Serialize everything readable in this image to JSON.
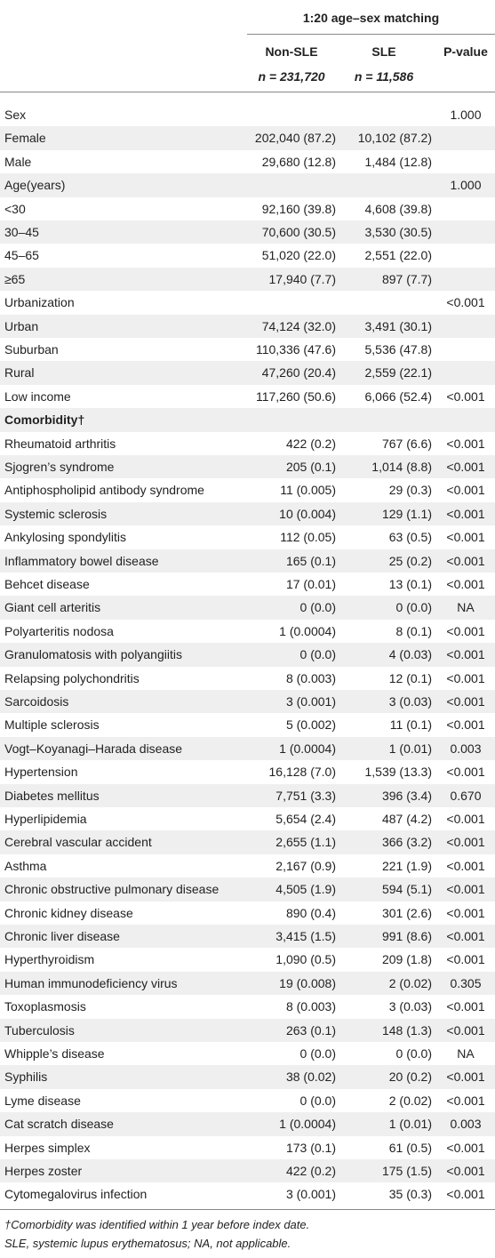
{
  "table": {
    "group_header": "1:20 age–sex matching",
    "columns": [
      {
        "name": "Non-SLE",
        "n": "n = 231,720"
      },
      {
        "name": "SLE",
        "n": "n = 11,586"
      },
      {
        "name": "P-value",
        "n": null
      }
    ],
    "rows": [
      [
        "Sex",
        null,
        null,
        "1.000"
      ],
      [
        "Female",
        "202,040 (87.2)",
        "10,102 (87.2)",
        null
      ],
      [
        "Male",
        "29,680 (12.8)",
        "1,484 (12.8)",
        null
      ],
      [
        "Age(years)",
        null,
        null,
        "1.000"
      ],
      [
        "<30",
        "92,160 (39.8)",
        "4,608 (39.8)",
        null
      ],
      [
        "30–45",
        "70,600 (30.5)",
        "3,530 (30.5)",
        null
      ],
      [
        "45–65",
        "51,020 (22.0)",
        "2,551 (22.0)",
        null
      ],
      [
        "≥65",
        "17,940 (7.7)",
        "897 (7.7)",
        null
      ],
      [
        "Urbanization",
        null,
        null,
        "<0.001"
      ],
      [
        "Urban",
        "74,124 (32.0)",
        "3,491 (30.1)",
        null
      ],
      [
        "Suburban",
        "110,336 (47.6)",
        "5,536 (47.8)",
        null
      ],
      [
        "Rural",
        "47,260 (20.4)",
        "2,559 (22.1)",
        null
      ],
      [
        "Low income",
        "117,260 (50.6)",
        "6,066 (52.4)",
        "<0.001"
      ],
      [
        "Comorbidity†",
        null,
        null,
        null
      ],
      [
        "Rheumatoid arthritis",
        "422 (0.2)",
        "767 (6.6)",
        "<0.001"
      ],
      [
        "Sjogren’s syndrome",
        "205 (0.1)",
        "1,014 (8.8)",
        "<0.001"
      ],
      [
        "Antiphospholipid antibody syndrome",
        "11 (0.005)",
        "29 (0.3)",
        "<0.001"
      ],
      [
        "Systemic sclerosis",
        "10 (0.004)",
        "129 (1.1)",
        "<0.001"
      ],
      [
        "Ankylosing spondylitis",
        "112 (0.05)",
        "63 (0.5)",
        "<0.001"
      ],
      [
        "Inflammatory bowel disease",
        "165 (0.1)",
        "25 (0.2)",
        "<0.001"
      ],
      [
        "Behcet disease",
        "17 (0.01)",
        "13 (0.1)",
        "<0.001"
      ],
      [
        "Giant cell arteritis",
        "0 (0.0)",
        "0 (0.0)",
        "NA"
      ],
      [
        "Polyarteritis nodosa",
        "1 (0.0004)",
        "8 (0.1)",
        "<0.001"
      ],
      [
        "Granulomatosis with polyangiitis",
        "0 (0.0)",
        "4 (0.03)",
        "<0.001"
      ],
      [
        "Relapsing polychondritis",
        "8 (0.003)",
        "12 (0.1)",
        "<0.001"
      ],
      [
        "Sarcoidosis",
        "3 (0.001)",
        "3 (0.03)",
        "<0.001"
      ],
      [
        "Multiple sclerosis",
        "5 (0.002)",
        "11 (0.1)",
        "<0.001"
      ],
      [
        "Vogt–Koyanagi–Harada disease",
        "1 (0.0004)",
        "1 (0.01)",
        "0.003"
      ],
      [
        "Hypertension",
        "16,128 (7.0)",
        "1,539 (13.3)",
        "<0.001"
      ],
      [
        "Diabetes mellitus",
        "7,751 (3.3)",
        "396 (3.4)",
        "0.670"
      ],
      [
        "Hyperlipidemia",
        "5,654 (2.4)",
        "487 (4.2)",
        "<0.001"
      ],
      [
        "Cerebral vascular accident",
        "2,655 (1.1)",
        "366 (3.2)",
        "<0.001"
      ],
      [
        "Asthma",
        "2,167 (0.9)",
        "221 (1.9)",
        "<0.001"
      ],
      [
        "Chronic obstructive pulmonary disease",
        "4,505 (1.9)",
        "594 (5.1)",
        "<0.001"
      ],
      [
        "Chronic kidney disease",
        "890 (0.4)",
        "301 (2.6)",
        "<0.001"
      ],
      [
        "Chronic liver disease",
        "3,415 (1.5)",
        "991 (8.6)",
        "<0.001"
      ],
      [
        "Hyperthyroidism",
        "1,090 (0.5)",
        "209 (1.8)",
        "<0.001"
      ],
      [
        "Human immunodeficiency virus",
        "19 (0.008)",
        "2 (0.02)",
        "0.305"
      ],
      [
        "Toxoplasmosis",
        "8 (0.003)",
        "3 (0.03)",
        "<0.001"
      ],
      [
        "Tuberculosis",
        "263 (0.1)",
        "148 (1.3)",
        "<0.001"
      ],
      [
        "Whipple’s disease",
        "0 (0.0)",
        "0 (0.0)",
        "NA"
      ],
      [
        "Syphilis",
        "38 (0.02)",
        "20 (0.2)",
        "<0.001"
      ],
      [
        "Lyme disease",
        "0 (0.0)",
        "2 (0.02)",
        "<0.001"
      ],
      [
        "Cat scratch disease",
        "1 (0.0004)",
        "1 (0.01)",
        "0.003"
      ],
      [
        "Herpes simplex",
        "173 (0.1)",
        "61 (0.5)",
        "<0.001"
      ],
      [
        "Herpes zoster",
        "422 (0.2)",
        "175 (1.5)",
        "<0.001"
      ],
      [
        "Cytomegalovirus infection",
        "3 (0.001)",
        "35 (0.3)",
        "<0.001"
      ]
    ],
    "footnotes": [
      "†Comorbidity was identified within 1 year before index date.",
      "SLE, systemic lupus erythematosus; NA, not applicable."
    ]
  }
}
